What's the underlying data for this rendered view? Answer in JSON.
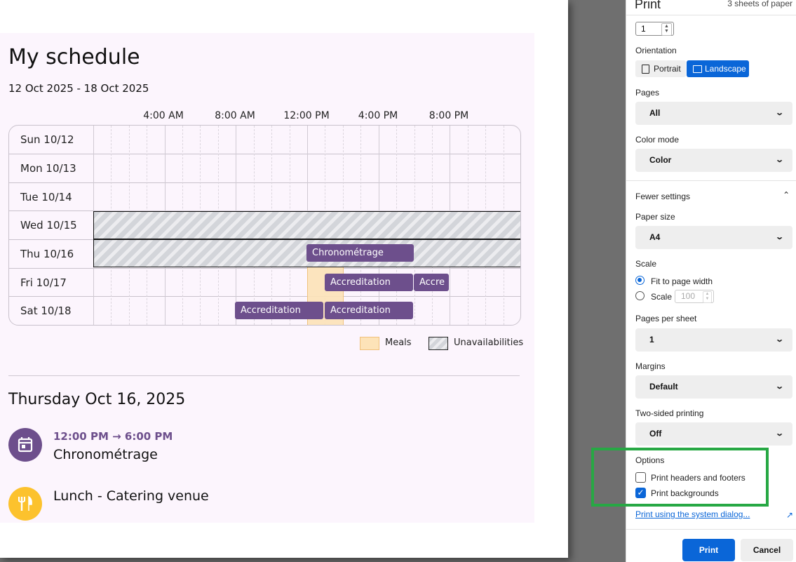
{
  "schedule": {
    "title": "My schedule",
    "date_range": "12 Oct 2025 - 18 Oct 2025",
    "time_labels": [
      "4:00 AM",
      "8:00 AM",
      "12:00 PM",
      "4:00 PM",
      "8:00 PM"
    ],
    "days": [
      "Sun 10/12",
      "Mon 10/13",
      "Tue 10/14",
      "Wed 10/15",
      "Thu 10/16",
      "Fri 10/17",
      "Sat 10/18"
    ],
    "events": {
      "thu_chrono": "Chronométrage",
      "fri_accr_1": "Accreditation",
      "fri_accr_2": "Accre",
      "sat_accr_1": "Accreditation",
      "sat_accr_2": "Accreditation"
    },
    "legend": {
      "meals": "Meals",
      "unavailabilities": "Unavailabilities"
    },
    "detail": {
      "day_heading": "Thursday Oct 16, 2025",
      "event_time": "12:00 PM → 6:00 PM",
      "event_title": "Chronométrage",
      "meal_title": "Lunch - Catering venue"
    },
    "colors": {
      "event": "#6d4f8c",
      "meal": "#fde3b8",
      "meal_icon_bg": "#fcc22d",
      "background": "#fcf5fd"
    }
  },
  "print_dialog": {
    "title": "Print",
    "sheets": "3 sheets of paper",
    "copies_value": "1",
    "orientation_label": "Orientation",
    "orientation_options": {
      "portrait": "Portrait",
      "landscape": "Landscape"
    },
    "orientation_selected": "Landscape",
    "pages_label": "Pages",
    "pages_value": "All",
    "color_mode_label": "Color mode",
    "color_mode_value": "Color",
    "fewer_settings": "Fewer settings",
    "paper_size_label": "Paper size",
    "paper_size_value": "A4",
    "scale_label": "Scale",
    "scale_options": {
      "fit": "Fit to page width",
      "scale": "Scale"
    },
    "scale_selected": "Fit to page width",
    "scale_value_placeholder": "100",
    "pages_per_sheet_label": "Pages per sheet",
    "pages_per_sheet_value": "1",
    "margins_label": "Margins",
    "margins_value": "Default",
    "two_sided_label": "Two-sided printing",
    "two_sided_value": "Off",
    "options_label": "Options",
    "options": {
      "headers_footers": {
        "label": "Print headers and footers",
        "checked": false
      },
      "backgrounds": {
        "label": "Print backgrounds",
        "checked": true
      }
    },
    "system_dialog_link": "Print using the system dialog...",
    "print_button": "Print",
    "cancel_button": "Cancel",
    "accent_color": "#0a66d8"
  }
}
